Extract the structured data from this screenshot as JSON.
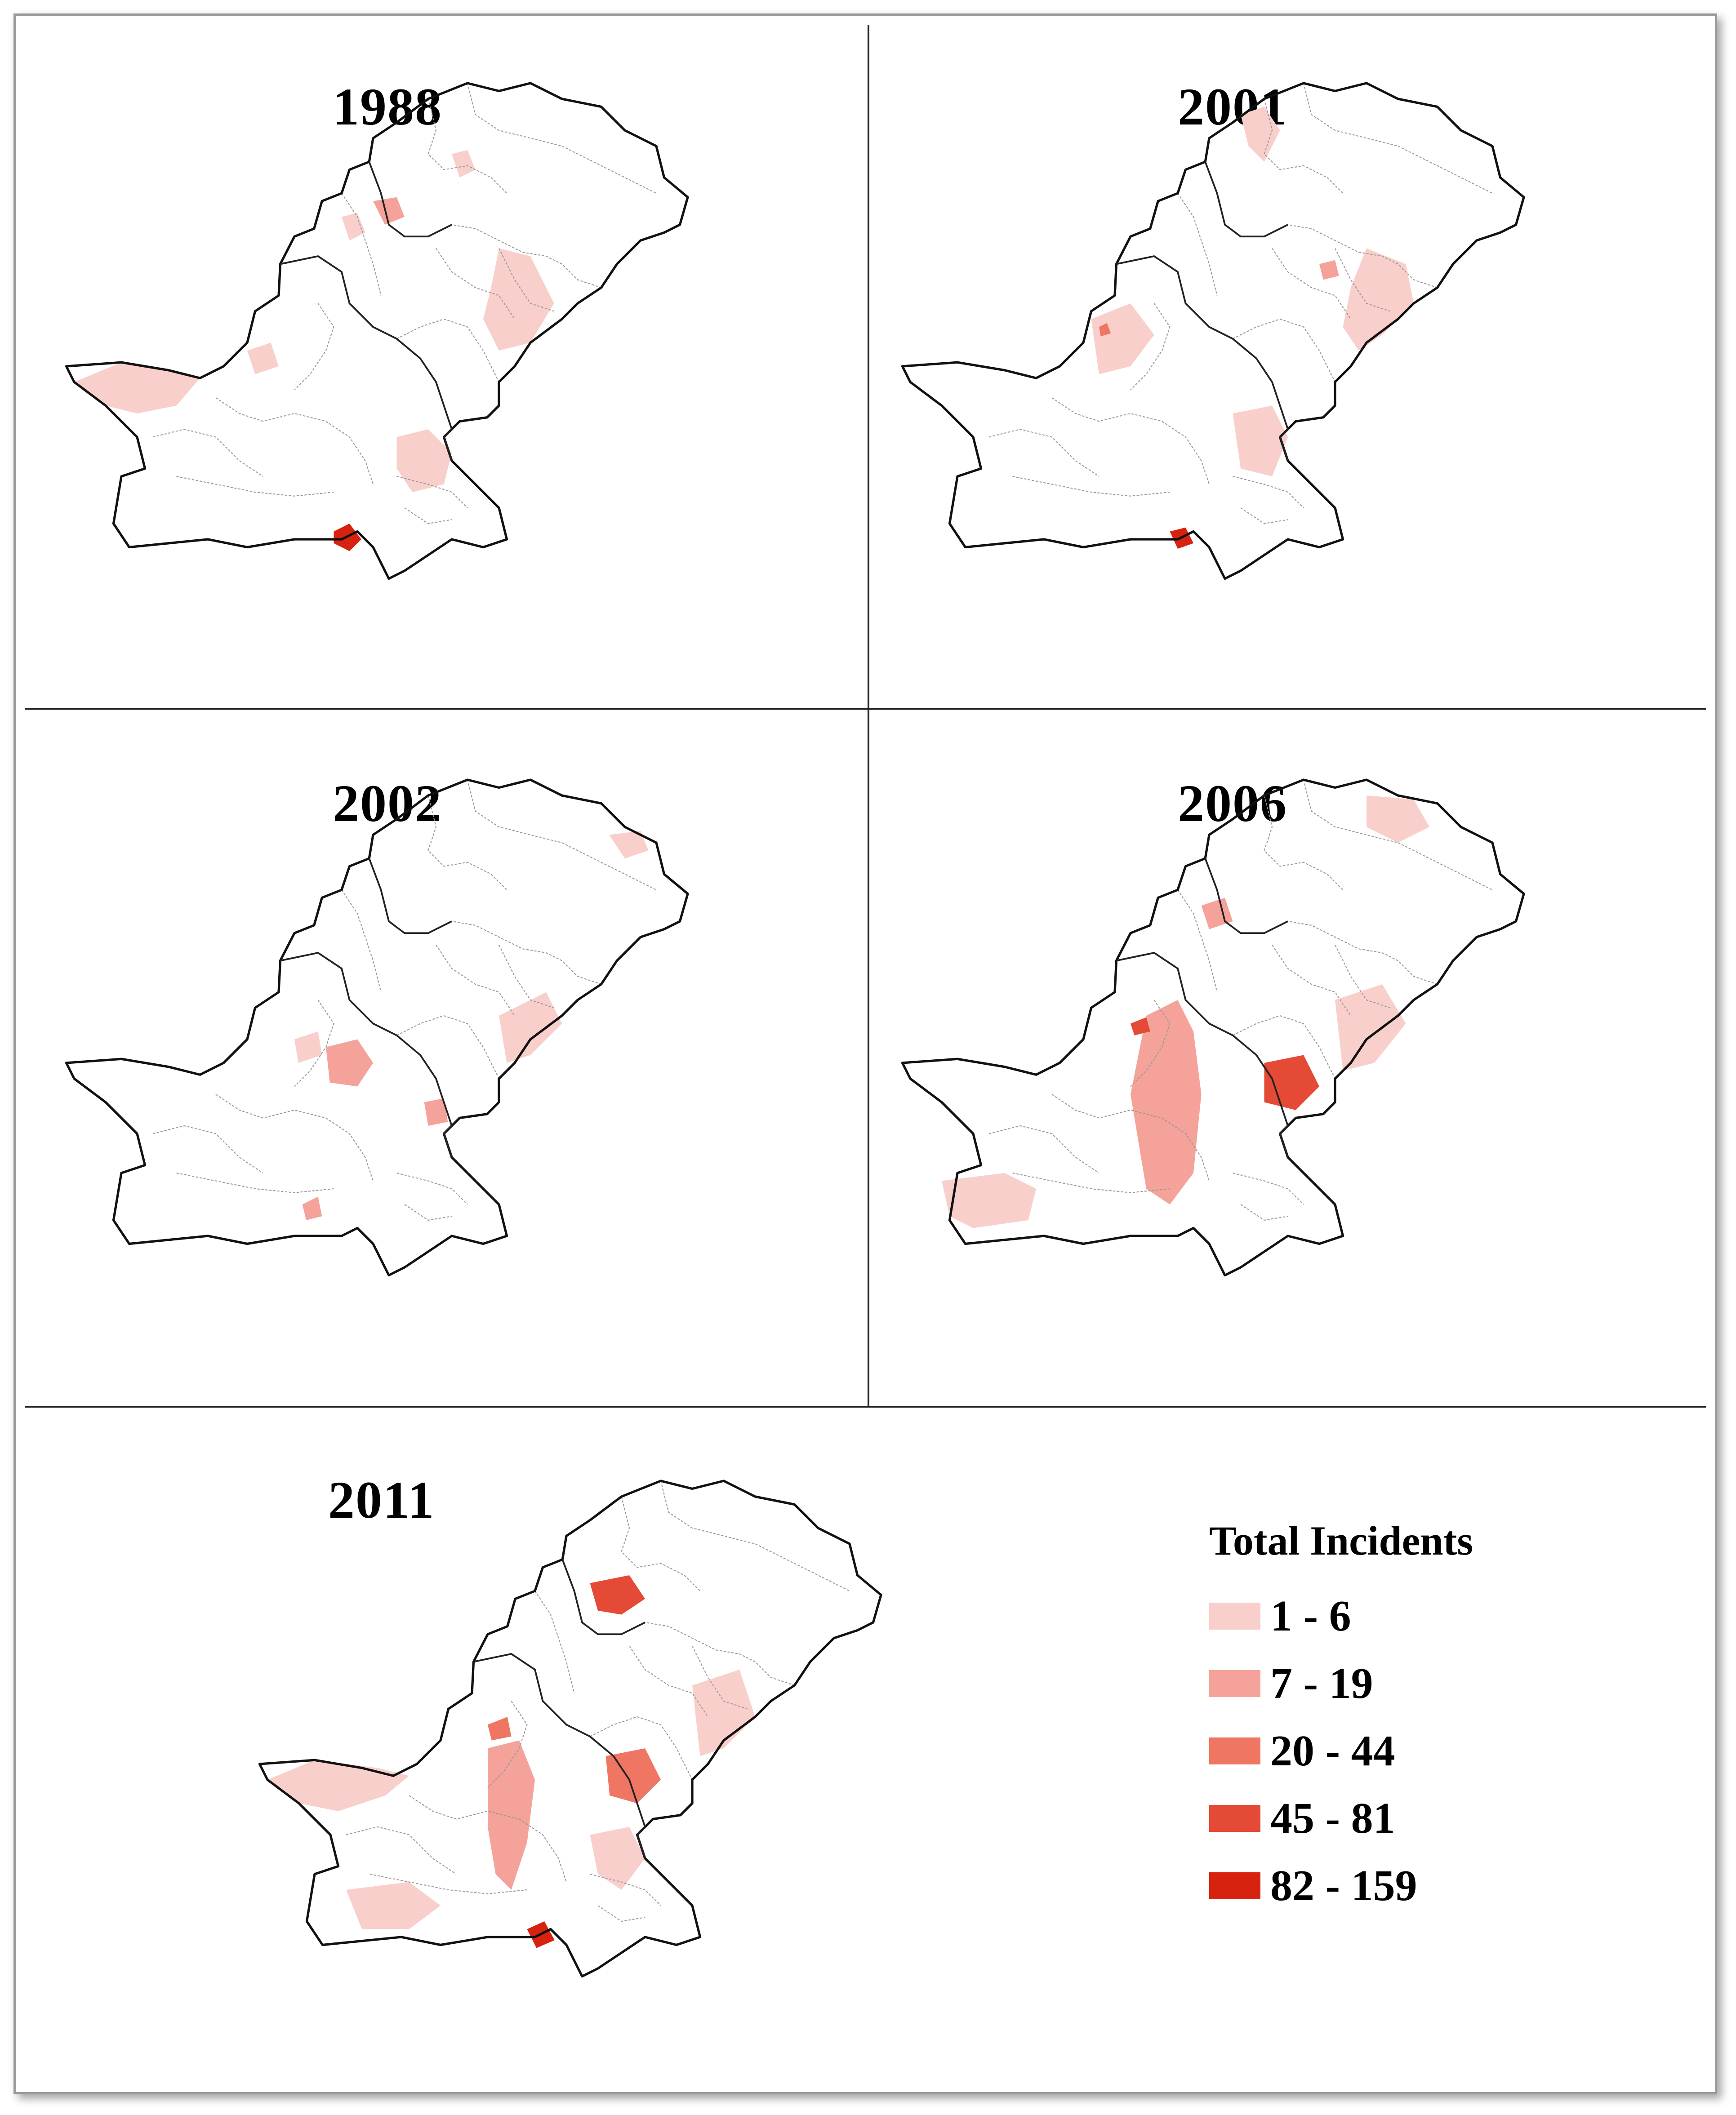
{
  "maps": [
    {
      "year": "1988"
    },
    {
      "year": "2001"
    },
    {
      "year": "2002"
    },
    {
      "year": "2006"
    },
    {
      "year": "2011"
    }
  ],
  "legend": {
    "title": "Total Incidents",
    "classes": [
      {
        "label": "1 - 6",
        "color": "#f9cfcc"
      },
      {
        "label": "7 - 19",
        "color": "#f4a29a"
      },
      {
        "label": "20 - 44",
        "color": "#ee7663"
      },
      {
        "label": "45 - 81",
        "color": "#e44a35"
      },
      {
        "label": "82 - 159",
        "color": "#d7220f"
      }
    ]
  }
}
